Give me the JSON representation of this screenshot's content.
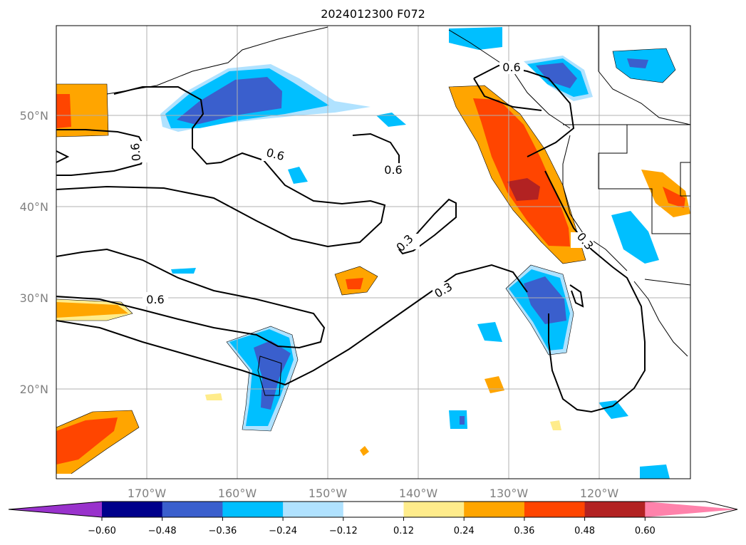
{
  "title": "2024012300 F072",
  "map": {
    "lat_labels": [
      "50°N",
      "40°N",
      "30°N",
      "20°N"
    ],
    "lon_labels": [
      "170°W",
      "160°W",
      "150°W",
      "140°W",
      "130°W",
      "120°W"
    ],
    "contour_labels": [
      "0.6",
      "0.6",
      "0.6",
      "0.3",
      "0.6",
      "0.3",
      "0.3",
      "0.6"
    ]
  },
  "colorbar": {
    "ticks": [
      "−0.60",
      "−0.48",
      "−0.36",
      "−0.24",
      "−0.12",
      "0.12",
      "0.24",
      "0.36",
      "0.48",
      "0.60"
    ],
    "colors": [
      "#9932cc",
      "#00008b",
      "#3a5fcd",
      "#00bfff",
      "#b0e2ff",
      "#ffffff",
      "#ffec8b",
      "#ffa500",
      "#ff4500",
      "#b22222",
      "#ff82ab"
    ]
  }
}
